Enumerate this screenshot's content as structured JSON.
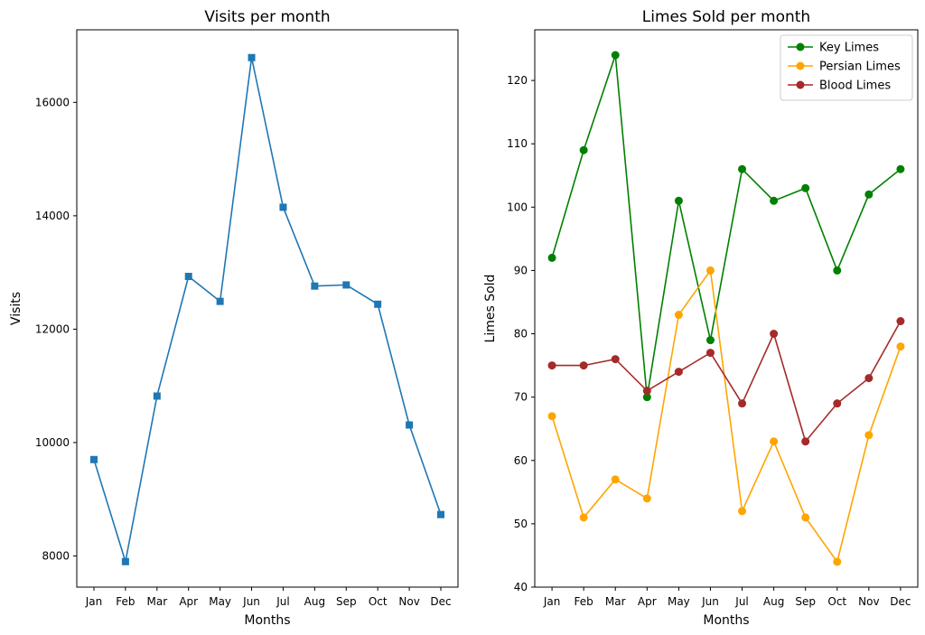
{
  "chart_data": [
    {
      "type": "line",
      "title": "Visits per month",
      "xlabel": "Months",
      "ylabel": "Visits",
      "categories": [
        "Jan",
        "Feb",
        "Mar",
        "Apr",
        "May",
        "Jun",
        "Jul",
        "Aug",
        "Sep",
        "Oct",
        "Nov",
        "Dec"
      ],
      "ylim": [
        7450,
        17280
      ],
      "yticks": [
        8000,
        10000,
        12000,
        14000,
        16000
      ],
      "grid": false,
      "series": [
        {
          "name": "",
          "color": "#1f77b4",
          "marker": "square",
          "values": [
            9700,
            7900,
            10820,
            12930,
            12490,
            16790,
            14150,
            12760,
            12780,
            12440,
            10310,
            8730
          ]
        }
      ]
    },
    {
      "type": "line",
      "title": "Limes Sold per month",
      "xlabel": "Months",
      "ylabel": "Limes Sold",
      "categories": [
        "Jan",
        "Feb",
        "Mar",
        "Apr",
        "May",
        "Jun",
        "Jul",
        "Aug",
        "Sep",
        "Oct",
        "Nov",
        "Dec"
      ],
      "ylim": [
        40,
        128
      ],
      "yticks": [
        40,
        50,
        60,
        70,
        80,
        90,
        100,
        110,
        120
      ],
      "grid": false,
      "legend_position": "top-right",
      "series": [
        {
          "name": "Key Limes",
          "color": "#008000",
          "marker": "circle",
          "values": [
            92,
            109,
            124,
            70,
            101,
            79,
            106,
            101,
            103,
            90,
            102,
            106
          ]
        },
        {
          "name": "Persian Limes",
          "color": "#ffa500",
          "marker": "circle",
          "values": [
            67,
            51,
            57,
            54,
            83,
            90,
            52,
            63,
            51,
            44,
            64,
            78
          ]
        },
        {
          "name": "Blood Limes",
          "color": "#a52a2a",
          "marker": "circle",
          "values": [
            75,
            75,
            76,
            71,
            74,
            77,
            69,
            80,
            63,
            69,
            73,
            82
          ]
        }
      ]
    }
  ]
}
